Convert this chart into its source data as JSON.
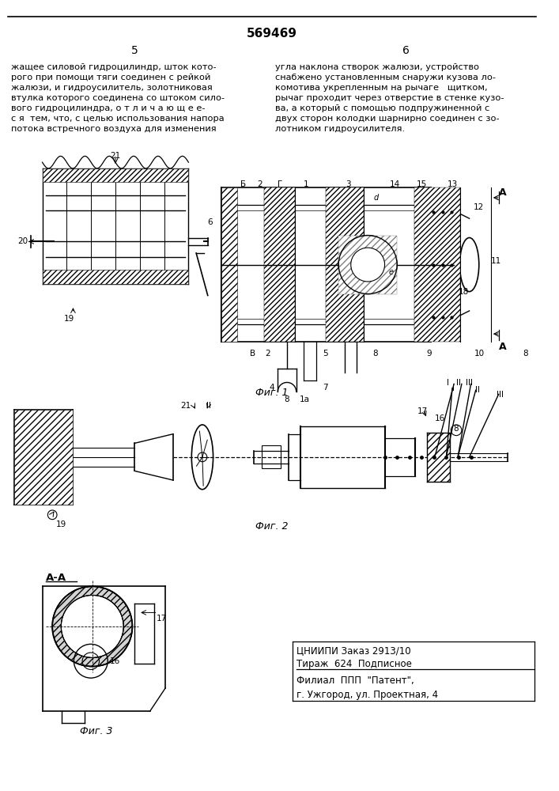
{
  "patent_number": "569469",
  "page_left": "5",
  "page_right": "6",
  "text_left_lines": [
    "жащее силовой гидроцилиндр, шток кото-",
    "рого при помощи тяги соединен с рейкой",
    "жалюзи, и гидроусилитель, золотниковая",
    "втулка которого соединена со штоком сило-",
    "вого гидроцилиндра, о т л и ч а ю щ е е-",
    "с я  тем, что, с целью использования напора",
    "потока встречного воздуха для изменения"
  ],
  "text_right_lines": [
    "угла наклона створок жалюзи, устройство",
    "снабжено установленным снаружи кузова ло-",
    "комотива укрепленным на рычаге   щитком,",
    "рычаг проходит через отверстие в стенке кузо-",
    "ва, а который с помощью подпружиненной с",
    "двух сторон колодки шарнирно соединен с зо-",
    "лотником гидроусилителя."
  ],
  "fig1_caption": "Фиг. 1",
  "fig2_caption": "Фиг. 2",
  "fig3_caption": "Фиг. 3",
  "fig3_section": "А-А",
  "pub1": "ЦНИИПИ Заказ 2913/10",
  "pub2": "Тираж  624  Подписное",
  "pub3": "Филиал  ППП  \"Патент\",",
  "pub4": "г. Ужгород, ул. Проектная, 4",
  "bg_color": "#ffffff"
}
